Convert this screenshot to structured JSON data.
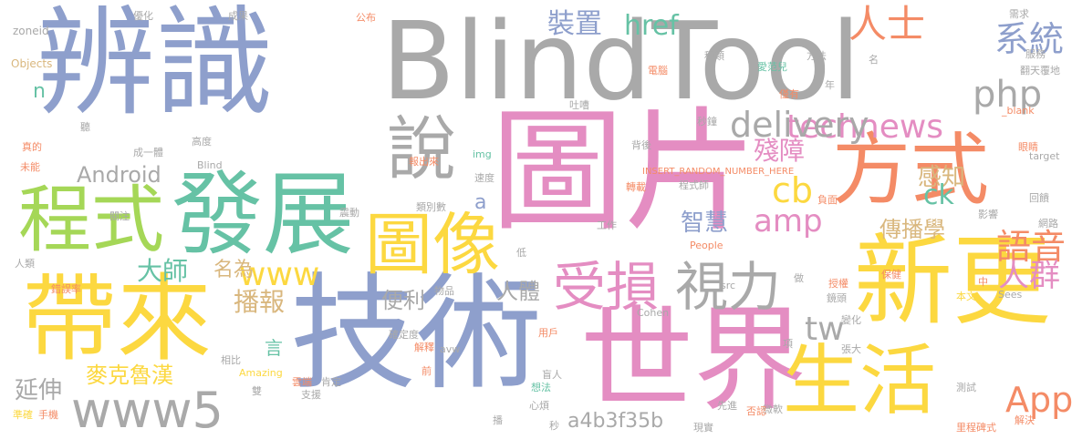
{
  "palette": {
    "gray": "#a9a9a9",
    "blue": "#8e9fcc",
    "pink": "#e48dc2",
    "orange": "#f48b66",
    "yellow": "#fcd840",
    "green": "#66c2a5",
    "lime": "#a5d757",
    "tan": "#d9b77e"
  },
  "words": [
    {
      "text": "BlindTool",
      "color": "gray"
    },
    {
      "text": "辨識",
      "color": "blue"
    },
    {
      "text": "圖片",
      "color": "pink"
    },
    {
      "text": "技術",
      "color": "blue"
    },
    {
      "text": "新更",
      "color": "yellow"
    },
    {
      "text": "世界",
      "color": "pink"
    },
    {
      "text": "發展",
      "color": "green"
    },
    {
      "text": "帶來",
      "color": "yellow"
    },
    {
      "text": "程式",
      "color": "lime"
    },
    {
      "text": "方式",
      "color": "orange"
    },
    {
      "text": "圖像",
      "color": "yellow"
    },
    {
      "text": "生活",
      "color": "yellow"
    },
    {
      "text": "說",
      "color": "gray"
    },
    {
      "text": "受損",
      "color": "pink"
    },
    {
      "text": "視力",
      "color": "gray"
    },
    {
      "text": "www5",
      "color": "gray"
    },
    {
      "text": "系統",
      "color": "blue"
    },
    {
      "text": "人士",
      "color": "orange"
    },
    {
      "text": "php",
      "color": "gray"
    },
    {
      "text": "technews",
      "color": "pink"
    },
    {
      "text": "delivery",
      "color": "gray"
    },
    {
      "text": "App",
      "color": "orange"
    },
    {
      "text": "語音",
      "color": "orange"
    },
    {
      "text": "人群",
      "color": "pink"
    },
    {
      "text": "www",
      "color": "yellow"
    },
    {
      "text": "amp",
      "color": "pink"
    },
    {
      "text": "cb",
      "color": "yellow"
    },
    {
      "text": "tw",
      "color": "gray"
    },
    {
      "text": "a4b3f35b",
      "color": "gray"
    },
    {
      "text": "裝置",
      "color": "blue"
    },
    {
      "text": "href",
      "color": "green"
    },
    {
      "text": "殘障",
      "color": "pink"
    },
    {
      "text": "智慧",
      "color": "blue"
    },
    {
      "text": "感知",
      "color": "tan"
    },
    {
      "text": "ck",
      "color": "green"
    },
    {
      "text": "傳播學",
      "color": "tan"
    },
    {
      "text": "Android",
      "color": "gray"
    },
    {
      "text": "大師",
      "color": "green"
    },
    {
      "text": "播報",
      "color": "tan"
    },
    {
      "text": "名為",
      "color": "tan"
    },
    {
      "text": "便利",
      "color": "gray"
    },
    {
      "text": "人體",
      "color": "gray"
    },
    {
      "text": "麥克魯漢",
      "color": "yellow"
    },
    {
      "text": "延伸",
      "color": "gray"
    },
    {
      "text": "言",
      "color": "green"
    },
    {
      "text": "a",
      "color": "blue"
    },
    {
      "text": "n",
      "color": "green"
    },
    {
      "text": "zoneid",
      "color": "gray"
    },
    {
      "text": "Objects",
      "color": "tan"
    },
    {
      "text": "Blind",
      "color": "gray"
    },
    {
      "text": "INSERT_RANDOM_NUMBER_HERE",
      "color": "orange"
    },
    {
      "text": "Amazing",
      "color": "yellow"
    },
    {
      "text": "Cohen",
      "color": "gray"
    },
    {
      "text": "People",
      "color": "orange"
    },
    {
      "text": "Sees",
      "color": "gray"
    },
    {
      "text": "target",
      "color": "gray"
    },
    {
      "text": "_blank",
      "color": "orange"
    },
    {
      "text": "src",
      "color": "gray"
    },
    {
      "text": "img",
      "color": "green"
    },
    {
      "text": "avw",
      "color": "gray"
    },
    {
      "text": "翻天覆地",
      "color": "gray"
    },
    {
      "text": "里程碑式",
      "color": "orange"
    },
    {
      "text": "成一體",
      "color": "gray"
    },
    {
      "text": "錯誤率",
      "color": "orange"
    },
    {
      "text": "準確",
      "color": "yellow"
    },
    {
      "text": "手機",
      "color": "orange"
    },
    {
      "text": "優化",
      "color": "gray"
    },
    {
      "text": "成果",
      "color": "gray"
    },
    {
      "text": "公布",
      "color": "orange"
    },
    {
      "text": "需求",
      "color": "gray"
    },
    {
      "text": "服務",
      "color": "gray"
    },
    {
      "text": "種類",
      "color": "gray"
    },
    {
      "text": "愛范兒",
      "color": "green"
    },
    {
      "text": "電腦",
      "color": "orange"
    },
    {
      "text": "方法",
      "color": "gray"
    },
    {
      "text": "名",
      "color": "gray"
    },
    {
      "text": "年",
      "color": "gray"
    },
    {
      "text": "僅有",
      "color": "orange"
    },
    {
      "text": "吐嘈",
      "color": "gray"
    },
    {
      "text": "秒鐘",
      "color": "gray"
    },
    {
      "text": "背後",
      "color": "gray"
    },
    {
      "text": "轉載",
      "color": "orange"
    },
    {
      "text": "程式師",
      "color": "gray"
    },
    {
      "text": "負面",
      "color": "orange"
    },
    {
      "text": "工作",
      "color": "gray"
    },
    {
      "text": "影響",
      "color": "gray"
    },
    {
      "text": "網路",
      "color": "gray"
    },
    {
      "text": "眼睛",
      "color": "orange"
    },
    {
      "text": "回饋",
      "color": "gray"
    },
    {
      "text": "保健",
      "color": "orange"
    },
    {
      "text": "授權",
      "color": "orange"
    },
    {
      "text": "鏡頭",
      "color": "gray"
    },
    {
      "text": "本文",
      "color": "yellow"
    },
    {
      "text": "變化",
      "color": "gray"
    },
    {
      "text": "做",
      "color": "gray"
    },
    {
      "text": "中",
      "color": "orange"
    },
    {
      "text": "項",
      "color": "gray"
    },
    {
      "text": "張大",
      "color": "gray"
    },
    {
      "text": "微軟",
      "color": "gray"
    },
    {
      "text": "測試",
      "color": "gray"
    },
    {
      "text": "否認",
      "color": "orange"
    },
    {
      "text": "先進",
      "color": "gray"
    },
    {
      "text": "現實",
      "color": "gray"
    },
    {
      "text": "解決",
      "color": "orange"
    },
    {
      "text": "心煩",
      "color": "gray"
    },
    {
      "text": "秒",
      "color": "gray"
    },
    {
      "text": "想法",
      "color": "green"
    },
    {
      "text": "盲人",
      "color": "gray"
    },
    {
      "text": "用戶",
      "color": "orange"
    },
    {
      "text": "解釋",
      "color": "orange"
    },
    {
      "text": "前",
      "color": "orange"
    },
    {
      "text": "物品",
      "color": "gray"
    },
    {
      "text": "低",
      "color": "gray"
    },
    {
      "text": "確定度",
      "color": "gray"
    },
    {
      "text": "肯定",
      "color": "gray"
    },
    {
      "text": "雲端",
      "color": "orange"
    },
    {
      "text": "支援",
      "color": "gray"
    },
    {
      "text": "相比",
      "color": "gray"
    },
    {
      "text": "播",
      "color": "gray"
    },
    {
      "text": "關注",
      "color": "gray"
    },
    {
      "text": "人類",
      "color": "gray"
    },
    {
      "text": "未能",
      "color": "orange"
    },
    {
      "text": "真的",
      "color": "orange"
    },
    {
      "text": "聽",
      "color": "gray"
    },
    {
      "text": "高度",
      "color": "gray"
    },
    {
      "text": "報出來",
      "color": "orange"
    },
    {
      "text": "震動",
      "color": "gray"
    },
    {
      "text": "類別數",
      "color": "gray"
    },
    {
      "text": "速度",
      "color": "gray"
    },
    {
      "text": "雙",
      "color": "gray"
    }
  ]
}
